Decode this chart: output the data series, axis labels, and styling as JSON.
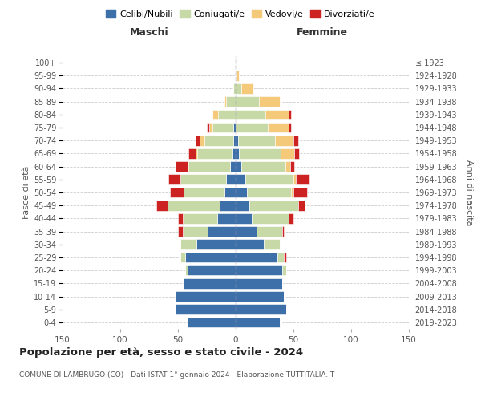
{
  "age_groups": [
    "0-4",
    "5-9",
    "10-14",
    "15-19",
    "20-24",
    "25-29",
    "30-34",
    "35-39",
    "40-44",
    "45-49",
    "50-54",
    "55-59",
    "60-64",
    "65-69",
    "70-74",
    "75-79",
    "80-84",
    "85-89",
    "90-94",
    "95-99",
    "100+"
  ],
  "birth_years": [
    "2019-2023",
    "2014-2018",
    "2009-2013",
    "2004-2008",
    "1999-2003",
    "1994-1998",
    "1989-1993",
    "1984-1988",
    "1979-1983",
    "1974-1978",
    "1969-1973",
    "1964-1968",
    "1959-1963",
    "1954-1958",
    "1949-1953",
    "1944-1948",
    "1939-1943",
    "1934-1938",
    "1929-1933",
    "1924-1928",
    "≤ 1923"
  ],
  "colors": {
    "celibi": "#3d6fa8",
    "coniugati": "#c8d9a8",
    "vedovi": "#f5c97a",
    "divorziati": "#cc2222"
  },
  "maschi": {
    "celibi": [
      42,
      52,
      52,
      45,
      42,
      44,
      34,
      24,
      16,
      14,
      10,
      8,
      5,
      3,
      2,
      2,
      0,
      0,
      0,
      0,
      0
    ],
    "coniugati": [
      0,
      0,
      0,
      0,
      2,
      4,
      14,
      22,
      30,
      45,
      35,
      40,
      36,
      30,
      25,
      18,
      15,
      8,
      2,
      0,
      0
    ],
    "vedovi": [
      0,
      0,
      0,
      0,
      0,
      0,
      0,
      0,
      0,
      0,
      0,
      0,
      1,
      2,
      4,
      3,
      5,
      2,
      0,
      0,
      0
    ],
    "divorziati": [
      0,
      0,
      0,
      0,
      0,
      0,
      0,
      4,
      4,
      10,
      12,
      10,
      10,
      6,
      4,
      2,
      0,
      0,
      0,
      0,
      0
    ]
  },
  "femmine": {
    "celibi": [
      38,
      44,
      42,
      40,
      40,
      36,
      24,
      18,
      14,
      12,
      10,
      8,
      5,
      3,
      2,
      0,
      0,
      0,
      0,
      0,
      0
    ],
    "coniugati": [
      0,
      0,
      0,
      0,
      4,
      6,
      14,
      22,
      32,
      42,
      38,
      42,
      38,
      36,
      32,
      28,
      26,
      20,
      5,
      1,
      0
    ],
    "vedovi": [
      0,
      0,
      0,
      0,
      0,
      0,
      0,
      0,
      0,
      0,
      2,
      2,
      4,
      12,
      16,
      18,
      20,
      18,
      10,
      2,
      1
    ],
    "divorziati": [
      0,
      0,
      0,
      0,
      0,
      2,
      0,
      2,
      4,
      6,
      12,
      12,
      4,
      4,
      4,
      2,
      2,
      0,
      0,
      0,
      0
    ]
  },
  "xlim": 150,
  "title": "Popolazione per età, sesso e stato civile - 2024",
  "subtitle": "COMUNE DI LAMBRUGO (CO) - Dati ISTAT 1° gennaio 2024 - Elaborazione TUTTITALIA.IT",
  "xlabel_left": "Maschi",
  "xlabel_right": "Femmine",
  "ylabel_left": "Fasce di età",
  "ylabel_right": "Anni di nascita",
  "legend_labels": [
    "Celibi/Nubili",
    "Coniugati/e",
    "Vedovi/e",
    "Divorziati/e"
  ],
  "background_color": "#ffffff",
  "grid_color": "#cccccc"
}
